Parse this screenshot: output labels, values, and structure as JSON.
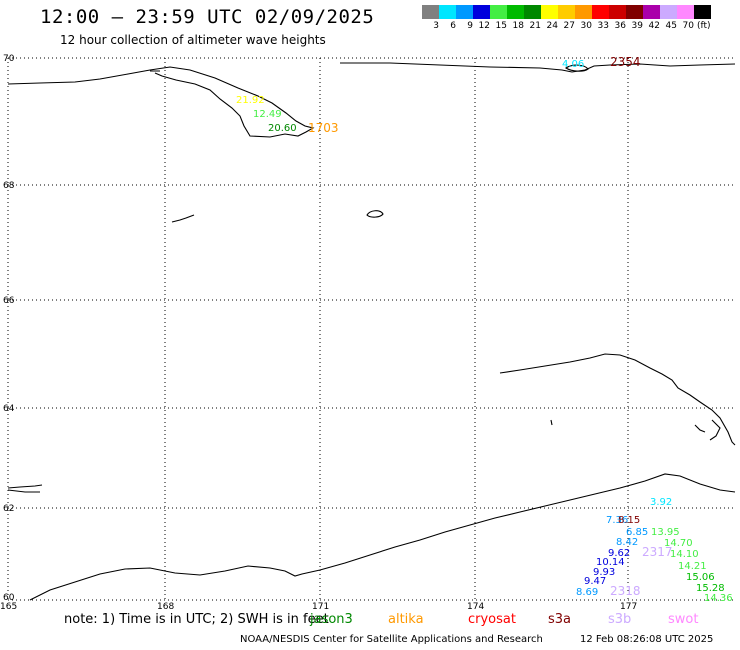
{
  "header": {
    "title": "12:00 – 23:59 UTC 02/09/2025",
    "subtitle": "12 hour collection of altimeter wave heights"
  },
  "legend": {
    "unit": "(ft)",
    "items": [
      {
        "label": "3",
        "color": "#808080"
      },
      {
        "label": "6",
        "color": "#00e6ff"
      },
      {
        "label": "9",
        "color": "#0099ff"
      },
      {
        "label": "12",
        "color": "#0000dd"
      },
      {
        "label": "15",
        "color": "#44ee44"
      },
      {
        "label": "18",
        "color": "#00bb00"
      },
      {
        "label": "21",
        "color": "#008800"
      },
      {
        "label": "24",
        "color": "#ffff00"
      },
      {
        "label": "27",
        "color": "#ffcc00"
      },
      {
        "label": "30",
        "color": "#ff9900"
      },
      {
        "label": "33",
        "color": "#ff0000"
      },
      {
        "label": "36",
        "color": "#cc0000"
      },
      {
        "label": "39",
        "color": "#800000"
      },
      {
        "label": "42",
        "color": "#aa00aa"
      },
      {
        "label": "45",
        "color": "#ccaaff"
      },
      {
        "label": "70",
        "color": "#ff88ff"
      },
      {
        "label": "",
        "color": "#000000"
      }
    ]
  },
  "axes": {
    "lat_labels": [
      "70",
      "68",
      "66",
      "64",
      "62",
      "60"
    ],
    "lon_labels": [
      "165",
      "168",
      "171",
      "174",
      "177"
    ]
  },
  "observations": [
    {
      "text": "4.06",
      "color": "#00e6ff"
    },
    {
      "text": "2354",
      "color": "#800000"
    },
    {
      "text": "21.92",
      "color": "#ffff00"
    },
    {
      "text": "12.49",
      "color": "#44ee44"
    },
    {
      "text": "20.60",
      "color": "#008800"
    },
    {
      "text": "1703",
      "color": "#ff9900"
    },
    {
      "text": "3.92",
      "color": "#00e6ff"
    },
    {
      "text": "7.36",
      "color": "#0099ff"
    },
    {
      "text": "8.15",
      "color": "#800000"
    },
    {
      "text": "6.85",
      "color": "#0099ff"
    },
    {
      "text": "13.95",
      "color": "#44ee44"
    },
    {
      "text": "8.42",
      "color": "#0099ff"
    },
    {
      "text": "14.70",
      "color": "#44ee44"
    },
    {
      "text": "9.62",
      "color": "#0000dd"
    },
    {
      "text": "2317",
      "color": "#ccaaff"
    },
    {
      "text": "14.10",
      "color": "#44ee44"
    },
    {
      "text": "10.14",
      "color": "#0000dd"
    },
    {
      "text": "14.21",
      "color": "#44ee44"
    },
    {
      "text": "9.93",
      "color": "#0000dd"
    },
    {
      "text": "15.06",
      "color": "#00bb00"
    },
    {
      "text": "9.47",
      "color": "#0000dd"
    },
    {
      "text": "15.28",
      "color": "#00bb00"
    },
    {
      "text": "8.69",
      "color": "#0099ff"
    },
    {
      "text": "2318",
      "color": "#ccaaff"
    },
    {
      "text": "14.36",
      "color": "#44ee44"
    }
  ],
  "footer": {
    "note": "note: 1) Time is in UTC; 2) SWH is in feet",
    "satellites": [
      {
        "name": "jason3",
        "color": "#008800"
      },
      {
        "name": "altika",
        "color": "#ff9900"
      },
      {
        "name": "cryosat",
        "color": "#ff0000"
      },
      {
        "name": "s3a",
        "color": "#800000"
      },
      {
        "name": "s3b",
        "color": "#ccaaff"
      },
      {
        "name": "swot",
        "color": "#ff88ff"
      }
    ],
    "credit": "NOAA/NESDIS Center for Satellite Applications and Research",
    "generated": "12 Feb 08:26:08 UTC 2025"
  }
}
